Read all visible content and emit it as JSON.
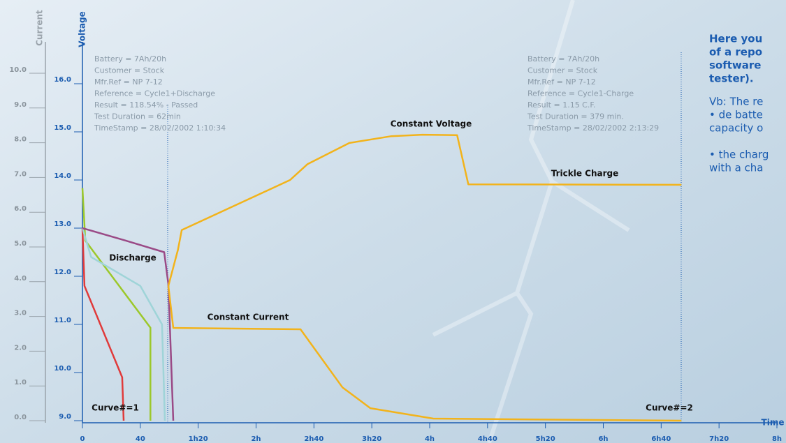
{
  "chart_data": {
    "type": "line",
    "ylabel": "Current",
    "y2label": "Voltage",
    "xlabel": "Time",
    "xlim": [
      0,
      480
    ],
    "xticks": [
      0,
      40,
      {
        "value": 80,
        "label": "1h20"
      },
      {
        "value": 120,
        "label": "2h"
      },
      {
        "value": 160,
        "label": "2h40"
      },
      {
        "value": 200,
        "label": "3h20"
      },
      {
        "value": 240,
        "label": "4h"
      },
      {
        "value": 280,
        "label": "4h40"
      },
      {
        "value": 320,
        "label": "5h20"
      },
      {
        "value": 360,
        "label": "6h"
      },
      {
        "value": 400,
        "label": "6h40"
      },
      {
        "value": 440,
        "label": "7h20"
      },
      {
        "value": 480,
        "label": "8h"
      }
    ],
    "ylim": [
      0,
      10
    ],
    "yticks": [
      {
        "value": 0,
        "label": "0.0"
      },
      {
        "value": 1,
        "label": "1.0"
      },
      {
        "value": 2,
        "label": "2.0"
      },
      {
        "value": 3,
        "label": "3.0"
      },
      {
        "value": 4,
        "label": "4.0"
      },
      {
        "value": 5,
        "label": "5.0"
      },
      {
        "value": 6,
        "label": "6.0"
      },
      {
        "value": 7,
        "label": "7.0"
      },
      {
        "value": 8,
        "label": "8.0"
      },
      {
        "value": 9,
        "label": "9.0"
      },
      {
        "value": 10,
        "label": "10.0"
      }
    ],
    "y2lim": [
      9,
      16
    ],
    "y2ticks": [
      {
        "value": 9,
        "label": "9.0"
      },
      {
        "value": 10,
        "label": "10.0"
      },
      {
        "value": 11,
        "label": "11.0"
      },
      {
        "value": 12,
        "label": "12.0"
      },
      {
        "value": 13,
        "label": "13.0"
      },
      {
        "value": 14,
        "label": "14.0"
      },
      {
        "value": 15,
        "label": "15.0"
      },
      {
        "value": 16,
        "label": "16.0"
      }
    ],
    "series": [
      {
        "color": "#e03a3a",
        "axis": "y2",
        "x": [
          0,
          1.4,
          27.5,
          28.5
        ],
        "values": [
          13.0,
          11.8,
          9.9,
          9.0
        ]
      },
      {
        "color": "#9cc82a",
        "axis": "y2",
        "x": [
          0,
          2,
          47,
          47
        ],
        "values": [
          13.83,
          12.74,
          10.93,
          9.0
        ]
      },
      {
        "color": "#9fd4d8",
        "axis": "y2",
        "x": [
          0,
          6,
          40,
          55,
          57
        ],
        "values": [
          13.0,
          12.4,
          11.8,
          11.0,
          9.0
        ]
      },
      {
        "color": "#9a4a86",
        "axis": "y2",
        "x": [
          0,
          30,
          56.5,
          59.4,
          62.8
        ],
        "values": [
          13.0,
          12.74,
          12.5,
          11.83,
          9.0
        ]
      },
      {
        "color": "#f2b31b",
        "axis": "y2",
        "x": [
          59.4,
          66,
          68.6,
          143.5,
          155.6,
          184.5,
          213.5,
          235,
          259,
          266.7,
          414
        ],
        "values": [
          11.8,
          12.55,
          12.96,
          14.0,
          14.33,
          14.77,
          14.91,
          14.94,
          14.93,
          13.91,
          13.9
        ]
      },
      {
        "color": "#f2b31b",
        "x": [
          59.4,
          62.8,
          150.7,
          179.7,
          199,
          242.5,
          414
        ],
        "values": [
          3.88,
          2.67,
          2.63,
          0.96,
          0.36,
          0.06,
          0
        ]
      }
    ],
    "annotations": [
      "Discharge",
      "Constant Current",
      "Constant Voltage",
      "Trickle Charge",
      "Curve#=1",
      "Curve#=2"
    ],
    "info_boxes": [
      [
        "Battery = 7Ah/20h",
        "Customer = Stock",
        "Mfr.Ref = NP 7-12",
        "Reference = Cycle1+Discharge",
        "Result = 118.54% - Passed",
        "Test Duration = 62min",
        "TimeStamp = 28/02/2002 1:10:34"
      ],
      [
        "Battery = 7Ah/20h",
        "Customer = Stock",
        "Mfr.Ref = NP 7-12",
        "Reference = Cycle1-Charge",
        "Result = 1.15 C.F.",
        "Test Duration = 379 min.",
        "TimeStamp = 28/02/2002 2:13:29"
      ]
    ],
    "side_text": {
      "bold": [
        "Here you",
        "of a repo",
        "software",
        "tester)."
      ],
      "plain": [
        "Vb: The re",
        "• de batte",
        "capacity o",
        "",
        "• the charg",
        "with a cha"
      ]
    }
  }
}
